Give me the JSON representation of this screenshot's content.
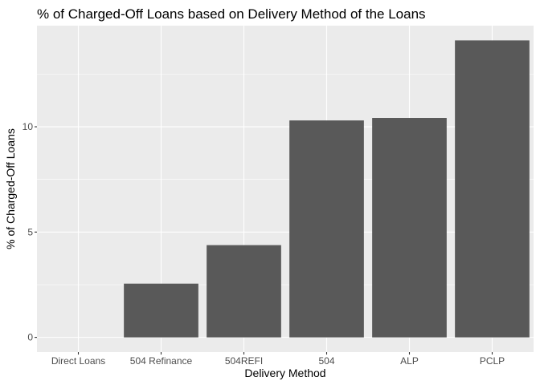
{
  "chart_data": {
    "type": "bar",
    "title": "% of Charged-Off Loans based on Delivery Method of the Loans",
    "xlabel": "Delivery Method",
    "ylabel": "% of Charged-Off Loans",
    "categories": [
      "Direct Loans",
      "504 Refinance",
      "504REFI",
      "504",
      "ALP",
      "PCLP"
    ],
    "values": [
      0,
      2.55,
      4.38,
      10.3,
      10.42,
      14.1
    ],
    "ylim": [
      -0.7,
      14.8
    ],
    "yticks": [
      0,
      5,
      10
    ],
    "ytick_labels": [
      "0",
      "5",
      "10"
    ],
    "grid": true,
    "colors": {
      "panel": "#ebebeb",
      "grid_major": "#ffffff",
      "bar": "#595959",
      "tick": "#333333"
    }
  }
}
